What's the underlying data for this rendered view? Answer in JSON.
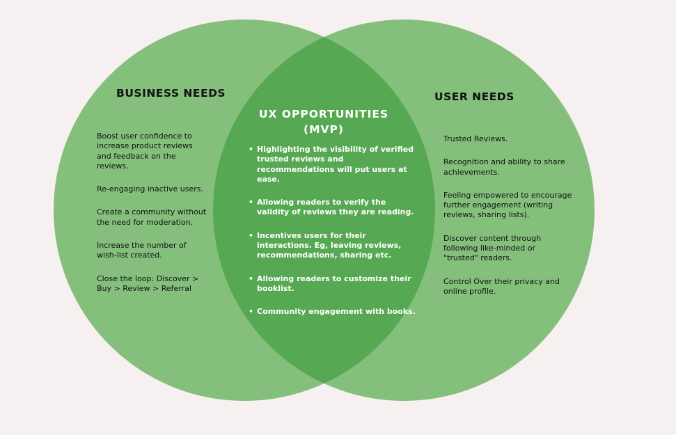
{
  "colors": {
    "background": "#f7f0f0",
    "circle": "#84bf7c",
    "overlap": "#56a852"
  },
  "business": {
    "title": "BUSINESS NEEDS",
    "items": [
      "Boost user confidence to increase product reviews and feedback on the reviews.",
      "Re-engaging inactive users.",
      "Create a community without the need for moderation.",
      "Increase the number of wish-list created.",
      "Close the loop: Discover > Buy > Review > Referral"
    ]
  },
  "ux": {
    "title_line1": "UX OPPORTUNITIES",
    "title_line2": "(MVP)",
    "items": [
      "Highlighting the visibility of verified trusted reviews and recommendations will put users at ease.",
      "Allowing readers to verify the validity of reviews they are reading.",
      "Incentives users for their interactions. Eg, leaving reviews, recommendations, sharing etc.",
      "Allowing readers to customize their booklist.",
      "Community engagement with books."
    ]
  },
  "user": {
    "title": "USER NEEDS",
    "items": [
      "Trusted Reviews.",
      "Recognition and ability to share achievements.",
      "Feeling empowered to encourage further engagement (writing reviews, sharing lists).",
      "Discover content through following like-minded or \"trusted\" readers.",
      "Control Over their privacy and online profile."
    ]
  }
}
